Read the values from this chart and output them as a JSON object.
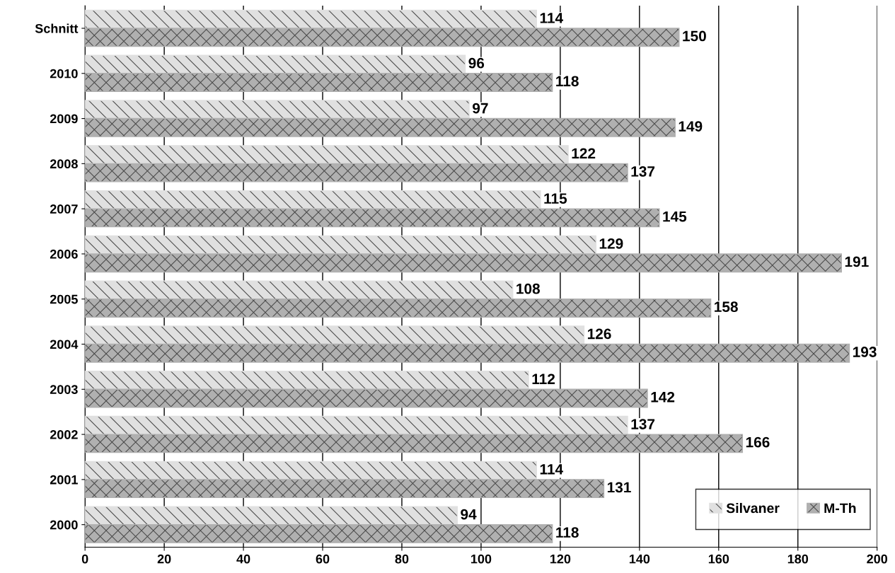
{
  "chart_data": {
    "type": "bar",
    "orientation": "horizontal",
    "categories": [
      "Schnitt",
      "2010",
      "2009",
      "2008",
      "2007",
      "2006",
      "2005",
      "2004",
      "2003",
      "2002",
      "2001",
      "2000"
    ],
    "series": [
      {
        "name": "Silvaner",
        "color": "#e0e0e0",
        "values": [
          114,
          96,
          97,
          122,
          115,
          129,
          108,
          126,
          112,
          137,
          114,
          94
        ]
      },
      {
        "name": "M-Th",
        "color": "#b0b0b0",
        "values": [
          150,
          118,
          149,
          137,
          145,
          191,
          158,
          193,
          142,
          166,
          131,
          118
        ]
      }
    ],
    "xlim": [
      0,
      200
    ],
    "xticks": [
      0,
      20,
      40,
      60,
      80,
      100,
      120,
      140,
      160,
      180,
      200
    ],
    "grid": "x",
    "legend": "bottom right",
    "data_labels": true
  }
}
